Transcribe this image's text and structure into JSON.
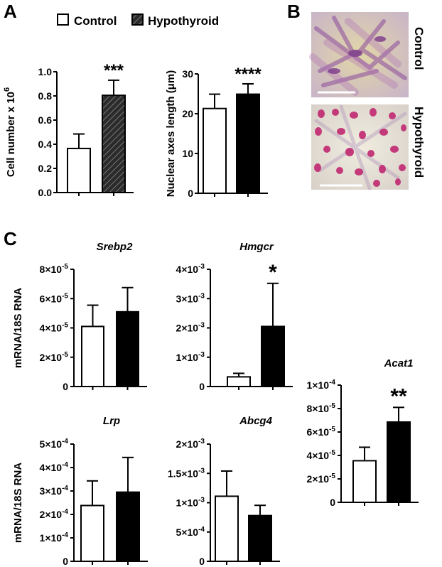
{
  "panels": {
    "a": "A",
    "b": "B",
    "c": "C"
  },
  "legend": [
    {
      "label": "Control",
      "fill": "#ffffff"
    },
    {
      "label": "Hypothyroid",
      "fill": "hatch"
    }
  ],
  "micrograph_labels": {
    "top": "Control",
    "bottom": "Hypothyroid"
  },
  "colors": {
    "bar_black": "#000000",
    "stain_purple": "#b063b0",
    "nucleus_magenta": "#c02870",
    "background_cream": "#e8e2c8"
  },
  "chart_data": [
    {
      "id": "cell-number",
      "type": "bar",
      "title": "",
      "ylabel": "Cell number x 10",
      "ylabel_sup": "6",
      "categories": [
        "Control",
        "Hypothyroid"
      ],
      "values": [
        0.365,
        0.805
      ],
      "errors": [
        0.12,
        0.125
      ],
      "ylim": [
        0,
        1.0
      ],
      "yticks": [
        "0.0",
        "0.2",
        "0.4",
        "0.6",
        "0.8",
        "1.0"
      ],
      "significance": "***",
      "hatched": true
    },
    {
      "id": "nuclear-axes",
      "type": "bar",
      "title": "",
      "ylabel": "Nuclear axes length (μm)",
      "categories": [
        "Control",
        "Hypothyroid"
      ],
      "values": [
        21.3,
        24.9
      ],
      "errors": [
        3.6,
        2.6
      ],
      "ylim": [
        0,
        30
      ],
      "yticks": [
        "0",
        "10",
        "20",
        "30"
      ],
      "significance": "****"
    },
    {
      "id": "srebp2",
      "type": "bar",
      "title": "Srebp2",
      "ylabel": "mRNA/18S RNA",
      "categories": [
        "Control",
        "Hypothyroid"
      ],
      "values": [
        4.1e-05,
        5.1e-05
      ],
      "errors": [
        1.45e-05,
        1.65e-05
      ],
      "ylim": [
        0,
        8e-05
      ],
      "yticks": [
        "0",
        "2×10-5",
        "4×10-5",
        "6×10-5",
        "8×10-5"
      ],
      "significance": ""
    },
    {
      "id": "hmgcr",
      "type": "bar",
      "title": "Hmgcr",
      "ylabel": "",
      "categories": [
        "Control",
        "Hypothyroid"
      ],
      "values": [
        0.00033,
        0.00205
      ],
      "errors": [
        0.00012,
        0.00147
      ],
      "ylim": [
        0,
        0.004
      ],
      "yticks": [
        "0",
        "1×10-3",
        "2×10-3",
        "3×10-3",
        "4×10-3"
      ],
      "significance": "*"
    },
    {
      "id": "acat1",
      "type": "bar",
      "title": "Acat1",
      "ylabel": "",
      "categories": [
        "Control",
        "Hypothyroid"
      ],
      "values": [
        3.55e-05,
        6.85e-05
      ],
      "errors": [
        1.15e-05,
        1.25e-05
      ],
      "ylim": [
        0,
        0.0001
      ],
      "yticks": [
        "0",
        "2×10-5",
        "4×10-5",
        "6×10-5",
        "8×10-5",
        "1×10-4"
      ],
      "significance": "**"
    },
    {
      "id": "lrp",
      "type": "bar",
      "title": "Lrp",
      "ylabel": "mRNA/18S RNA",
      "categories": [
        "Control",
        "Hypothyroid"
      ],
      "values": [
        0.000238,
        0.000295
      ],
      "errors": [
        0.000105,
        0.000148
      ],
      "ylim": [
        0,
        0.0005
      ],
      "yticks": [
        "0",
        "1×10-4",
        "2×10-4",
        "3×10-4",
        "4×10-4",
        "5×10-4"
      ],
      "significance": ""
    },
    {
      "id": "abcg4",
      "type": "bar",
      "title": "Abcg4",
      "ylabel": "",
      "categories": [
        "Control",
        "Hypothyroid"
      ],
      "values": [
        0.00111,
        0.00078
      ],
      "errors": [
        0.00043,
        0.000175
      ],
      "ylim": [
        0,
        0.002
      ],
      "yticks": [
        "0",
        "5×10-4",
        "1×10-3",
        "1.5×10-3",
        "2×10-3"
      ],
      "significance": ""
    }
  ]
}
